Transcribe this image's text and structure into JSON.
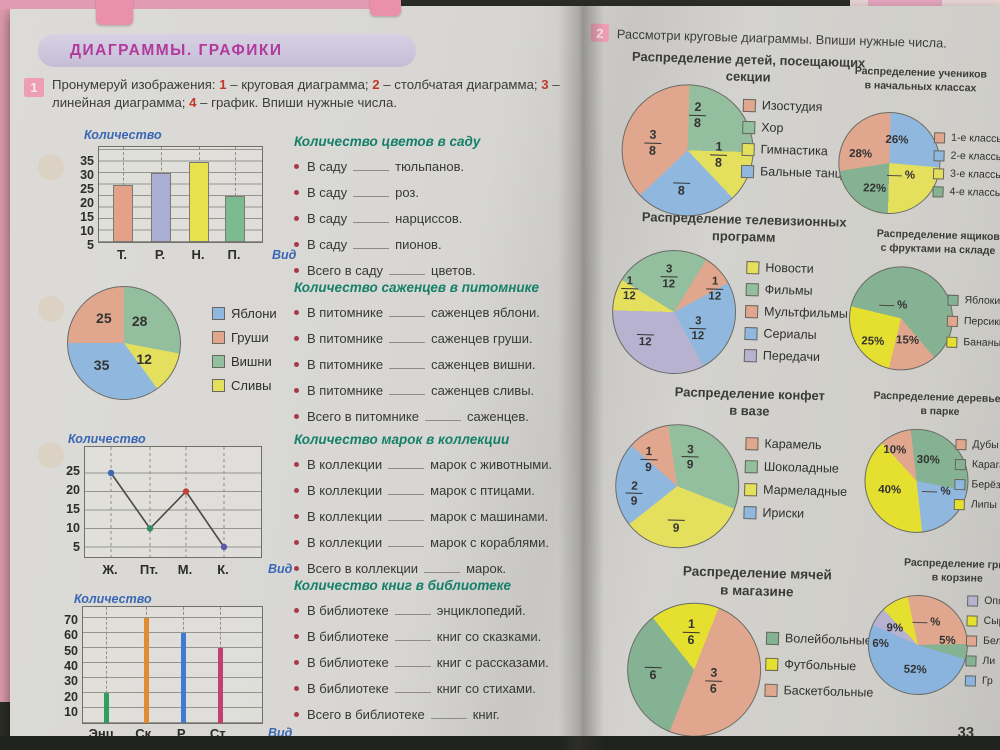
{
  "header": {
    "banner": "ДИАГРАММЫ. ГРАФИКИ"
  },
  "task1": {
    "number": "1",
    "parts": [
      {
        "t": "Пронумеруй изображения: "
      },
      {
        "t": "1"
      },
      {
        "t": " – круговая диаграмма; "
      },
      {
        "t": "2"
      },
      {
        "t": " – столбчатая диаграмма; "
      },
      {
        "t": "3"
      },
      {
        "t": " – линейная диаграмма; "
      },
      {
        "t": "4"
      },
      {
        "t": " – график. Впиши нужные числа."
      }
    ]
  },
  "task2": {
    "number": "2",
    "text": "Рассмотри круговые диаграммы. Впиши нужные числа."
  },
  "page_number": "33",
  "chart_data": {
    "flowers": {
      "type": "bar",
      "title": "Количество цветов в саду",
      "ylabel": "Количество",
      "xlabel": "Вид",
      "categories": [
        "Т.",
        "Р.",
        "Н.",
        "П."
      ],
      "values": [
        25,
        30,
        35,
        20
      ],
      "yticks": [
        35,
        30,
        25,
        20,
        15,
        10,
        5
      ],
      "ylim": [
        0,
        40
      ],
      "grid": true,
      "bar_colors": [
        "#e2a188",
        "#a9aed2",
        "#e8e14e",
        "#7cba92"
      ]
    },
    "saplings": {
      "type": "pie",
      "title": "Количество саженцев в питомнике",
      "slices": [
        {
          "label": "Яблони",
          "value": 35,
          "color": "#90b8df"
        },
        {
          "label": "Груши",
          "value": 25,
          "color": "#e0a78e"
        },
        {
          "label": "Вишни",
          "value": 28,
          "color": "#93bf9e"
        },
        {
          "label": "Сливы",
          "value": 12,
          "color": "#e5df5e"
        }
      ]
    },
    "stamps": {
      "type": "line",
      "title": "Количество марок в коллекции",
      "ylabel": "Количество",
      "xlabel": "Вид",
      "categories": [
        "Ж.",
        "Пт.",
        "М.",
        "К."
      ],
      "values": [
        25,
        10,
        20,
        5
      ],
      "yticks": [
        25,
        20,
        15,
        10,
        5
      ],
      "ylim": [
        0,
        28
      ],
      "grid": true,
      "point_colors": [
        "#3d6ab5",
        "#2f8f5f",
        "#c04038",
        "#5a58a8"
      ]
    },
    "books": {
      "type": "bar",
      "title": "Количество книг в библиотеке",
      "ylabel": "Количество",
      "xlabel": "Вид",
      "categories": [
        "Энц.",
        "Ск.",
        "Р.",
        "Ст."
      ],
      "values": [
        20,
        70,
        60,
        50
      ],
      "yticks": [
        70,
        60,
        50,
        40,
        30,
        20,
        10
      ],
      "ylim": [
        0,
        78
      ],
      "grid": true,
      "bar_colors": [
        "#2f9e5f",
        "#df8c33",
        "#3e7cd0",
        "#c23f72"
      ]
    },
    "sections_pie": {
      "type": "pie",
      "title": "Распределение детей, посещающих секции",
      "slices": [
        {
          "label": "Изостудия",
          "fraction": "3/8",
          "color": "#e0a78e"
        },
        {
          "label": "Хор",
          "fraction": "2/8",
          "color": "#93bf9e"
        },
        {
          "label": "Гимнастика",
          "fraction": "1/8",
          "color": "#e5df5e"
        },
        {
          "label": "Бальные танцы",
          "fraction": null,
          "color": "#90b8df"
        }
      ]
    },
    "classes_pie": {
      "type": "pie",
      "title": "Распределение учеников в начальных классах",
      "slices": [
        {
          "label": "1-е классы",
          "percent": "28%",
          "color": "#e0a78e"
        },
        {
          "label": "2-е классы",
          "percent": "26%",
          "color": "#90b8df"
        },
        {
          "label": "3-е классы",
          "percent": null,
          "color": "#e5df5e"
        },
        {
          "label": "4-е классы",
          "percent": "22%",
          "color": "#84b292"
        }
      ]
    },
    "tv_pie": {
      "type": "pie",
      "title": "Распределение телевизионных программ",
      "slices": [
        {
          "label": "Новости",
          "fraction": "1/12",
          "color": "#e5df5e"
        },
        {
          "label": "Фильмы",
          "fraction": "3/12",
          "color": "#93bf9e"
        },
        {
          "label": "Мультфильмы",
          "fraction": "1/12",
          "color": "#e0a78e"
        },
        {
          "label": "Сериалы",
          "fraction": "3/12",
          "color": "#90b8df"
        },
        {
          "label": "Передачи",
          "fraction": null,
          "color": "#b6b2d0"
        }
      ]
    },
    "fruits_pie": {
      "type": "pie",
      "title": "Распределение ящиков с фруктами на складе",
      "slices": [
        {
          "label": "Яблоки",
          "percent": null,
          "color": "#84b292"
        },
        {
          "label": "Персики",
          "percent": "15%",
          "color": "#e0a78e"
        },
        {
          "label": "Бананы",
          "percent": "25%",
          "color": "#e5df30"
        }
      ]
    },
    "candies_pie": {
      "type": "pie",
      "title": "Распределение конфет в вазе",
      "slices": [
        {
          "label": "Карамель",
          "fraction": "1/9",
          "color": "#e0a78e"
        },
        {
          "label": "Шоколадные",
          "fraction": "3/9",
          "color": "#93bf9e"
        },
        {
          "label": "Мармеладные",
          "fraction": null,
          "color": "#e5df5e"
        },
        {
          "label": "Ириски",
          "fraction": "2/9",
          "color": "#90b8df"
        }
      ]
    },
    "trees_pie": {
      "type": "pie",
      "title": "Распределение деревьев в парке",
      "slices": [
        {
          "label": "Дубы",
          "percent": "10%",
          "color": "#e0a78e"
        },
        {
          "label": "Карага",
          "percent": "30%",
          "color": "#84b292"
        },
        {
          "label": "Берёзы",
          "percent": null,
          "color": "#90b8df"
        },
        {
          "label": "Липы",
          "percent": "40%",
          "color": "#e5df30"
        }
      ]
    },
    "balls_pie": {
      "type": "pie",
      "title": "Распределение мячей в магазине",
      "slices": [
        {
          "label": "Волейбольные",
          "fraction": null,
          "color": "#84b292"
        },
        {
          "label": "Футбольные",
          "fraction": "1/6",
          "color": "#e5df30"
        },
        {
          "label": "Баскетбольные",
          "fraction": "3/6",
          "color": "#e0a78e"
        }
      ]
    },
    "mushrooms_pie": {
      "type": "pie",
      "title": "Распределение гриб в корзине",
      "slices": [
        {
          "label": "Опя",
          "percent": null,
          "color": "#b6b2d0"
        },
        {
          "label": "Сыр",
          "percent": "9%",
          "color": "#e5df30"
        },
        {
          "label": "Бел",
          "percent": null,
          "color": "#e0a78e"
        },
        {
          "label": "Ли",
          "percent": "5%",
          "color": "#84b292"
        },
        {
          "label": "Гр",
          "percent": "52%",
          "color": "#8ab4dd"
        }
      ],
      "visible_percents": [
        "9%",
        "6%",
        "5%",
        "52%"
      ]
    }
  },
  "sections_left": {
    "flowers": {
      "heading": "Количество цветов в саду",
      "items": [
        {
          "pre": "В саду",
          "post": "тюльпанов."
        },
        {
          "pre": "В саду",
          "post": "роз."
        },
        {
          "pre": "В саду",
          "post": "нарциссов."
        },
        {
          "pre": "В саду",
          "post": "пионов."
        },
        {
          "pre": "Всего в саду",
          "post": "цветов."
        }
      ]
    },
    "saplings": {
      "heading": "Количество саженцев в питомнике",
      "items": [
        {
          "pre": "В питомнике",
          "post": "саженцев яблони."
        },
        {
          "pre": "В питомнике",
          "post": "саженцев груши."
        },
        {
          "pre": "В питомнике",
          "post": "саженцев вишни."
        },
        {
          "pre": "В питомнике",
          "post": "саженцев сливы."
        },
        {
          "pre": "Всего в питомнике",
          "post": "саженцев."
        }
      ]
    },
    "stamps": {
      "heading": "Количество марок в коллекции",
      "items": [
        {
          "pre": "В коллекции",
          "post": "марок с животными."
        },
        {
          "pre": "В коллекции",
          "post": "марок с птицами."
        },
        {
          "pre": "В коллекции",
          "post": "марок с машинами."
        },
        {
          "pre": "В коллекции",
          "post": "марок с кораблями."
        },
        {
          "pre": "Всего в коллекции",
          "post": "марок."
        }
      ]
    },
    "books": {
      "heading": "Количество книг в библиотеке",
      "items": [
        {
          "pre": "В библиотеке",
          "post": "энциклопедий."
        },
        {
          "pre": "В библиотеке",
          "post": "книг со сказками."
        },
        {
          "pre": "В библиотеке",
          "post": "книг с рассказами."
        },
        {
          "pre": "В библиотеке",
          "post": "книг со стихами."
        },
        {
          "pre": "Всего в библиотеке",
          "post": "книг."
        }
      ]
    }
  },
  "right": {
    "a": {
      "t1": "Распределение детей, посещающих",
      "t2": "секции",
      "labels": [
        {
          "n": "3",
          "d": "8"
        },
        {
          "n": "2",
          "d": "8"
        },
        {
          "n": "1",
          "d": "8"
        },
        {
          "n": "",
          "d": "8"
        }
      ]
    },
    "b": {
      "t1": "Распределение учеников",
      "t2": "в начальных классах",
      "labels": [
        {
          "t": "28%"
        },
        {
          "t": "26%"
        },
        {
          "t": "%"
        },
        {
          "t": "22%"
        }
      ]
    },
    "c": {
      "t1": "Распределение телевизионных",
      "t2": "программ",
      "labels": [
        {
          "n": "1",
          "d": "12"
        },
        {
          "n": "3",
          "d": "12"
        },
        {
          "n": "1",
          "d": "12"
        },
        {
          "n": "3",
          "d": "12"
        },
        {
          "n": "",
          "d": "12"
        }
      ]
    },
    "d": {
      "t1": "Распределение ящиков",
      "t2": "с фруктами на складе",
      "labels": [
        {
          "t": "%"
        },
        {
          "t": "25%"
        },
        {
          "t": "15%"
        }
      ]
    },
    "e": {
      "t1": "Распределение конфет",
      "t2": "в вазе",
      "labels": [
        {
          "n": "1",
          "d": "9"
        },
        {
          "n": "3",
          "d": "9"
        },
        {
          "n": "2",
          "d": "9"
        },
        {
          "n": "",
          "d": "9"
        }
      ]
    },
    "f": {
      "t1": "Распределение деревьев",
      "t2": "в парке",
      "labels": [
        {
          "t": "10%"
        },
        {
          "t": "30%"
        },
        {
          "t": "%"
        },
        {
          "t": "40%"
        }
      ]
    },
    "g": {
      "t1": "Распределение мячей",
      "t2": "в магазине",
      "labels": [
        {
          "n": "1",
          "d": "6"
        },
        {
          "n": "",
          "d": "6"
        },
        {
          "n": "3",
          "d": "6"
        }
      ]
    },
    "h": {
      "t1": "Распределение гриб",
      "t2": "в корзине",
      "labels": [
        {
          "t": "%"
        },
        {
          "t": "9%"
        },
        {
          "t": "6%"
        },
        {
          "t": "5%"
        },
        {
          "t": "52%"
        }
      ]
    }
  }
}
